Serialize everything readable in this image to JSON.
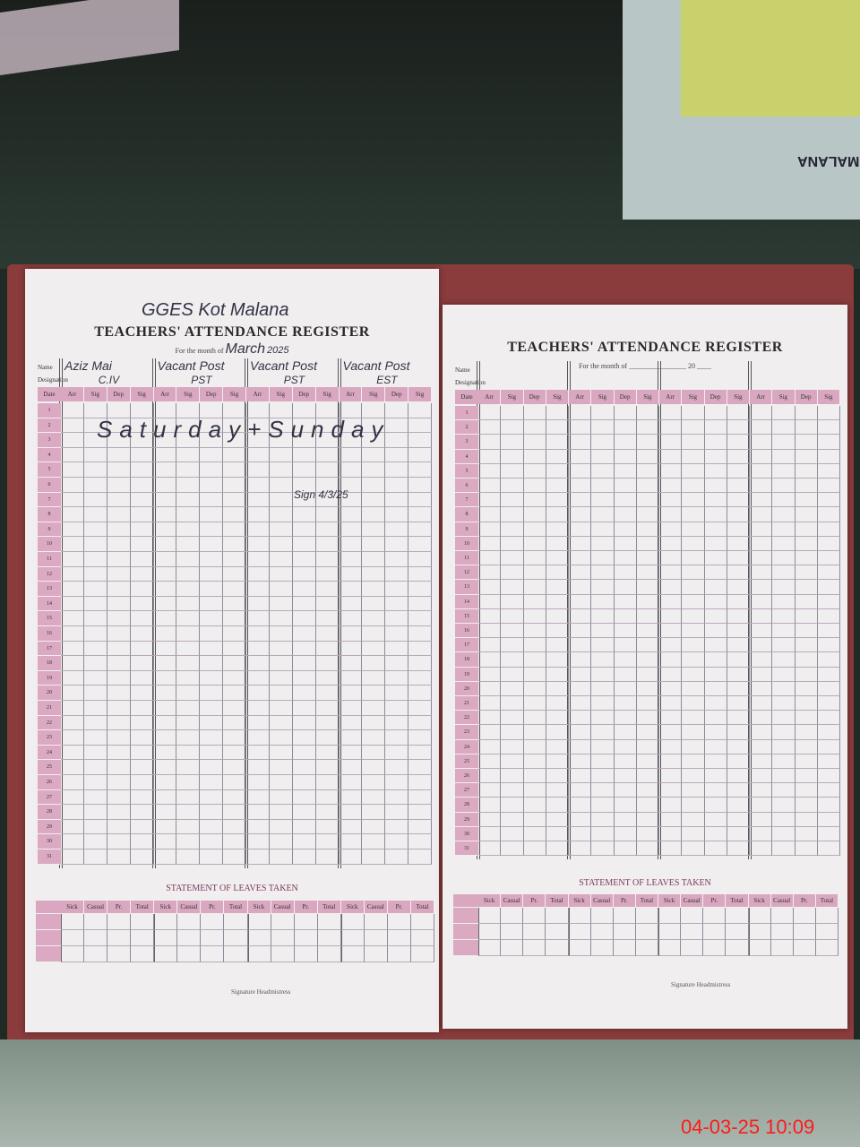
{
  "background": {
    "top_right_book_label": "MALANA"
  },
  "left_page": {
    "school": "GGES Kot Malana",
    "title": "TEACHERS' ATTENDANCE REGISTER",
    "month_label": "For the month of",
    "month": "March",
    "year": "2025",
    "name_label": "Name",
    "designation_label": "Designation",
    "teachers": [
      {
        "name": "Aziz Mai",
        "designation": "C.IV"
      },
      {
        "name": "Vacant Post",
        "designation": "PST"
      },
      {
        "name": "Vacant Post",
        "designation": "PST"
      },
      {
        "name": "Vacant Post",
        "designation": "EST"
      }
    ],
    "note": "Saturday+Sunday",
    "signature_note": "Sign 4/3/25",
    "statement_title": "STATEMENT OF LEAVES TAKEN",
    "signature_label": "Signature Headmistress"
  },
  "right_page": {
    "title": "TEACHERS' ATTENDANCE REGISTER",
    "month_label": "For the month of",
    "year_label": "20",
    "name_label": "Name",
    "designation_label": "Designation",
    "statement_title": "STATEMENT OF LEAVES TAKEN",
    "date_label": "Date",
    "signature_label": "Signature Headmistress"
  },
  "columns": [
    "Arr",
    "Sig",
    "Dep",
    "Sig"
  ],
  "date_header": "Date",
  "leave_columns": [
    "Sick",
    "Casual",
    "Pr.",
    "Total"
  ],
  "days": 31,
  "colors": {
    "pink_header": "#d9a8c0",
    "paper": "#f1eef0",
    "timestamp": "#ff1a1a"
  },
  "timestamp": "04-03-25  10:09"
}
